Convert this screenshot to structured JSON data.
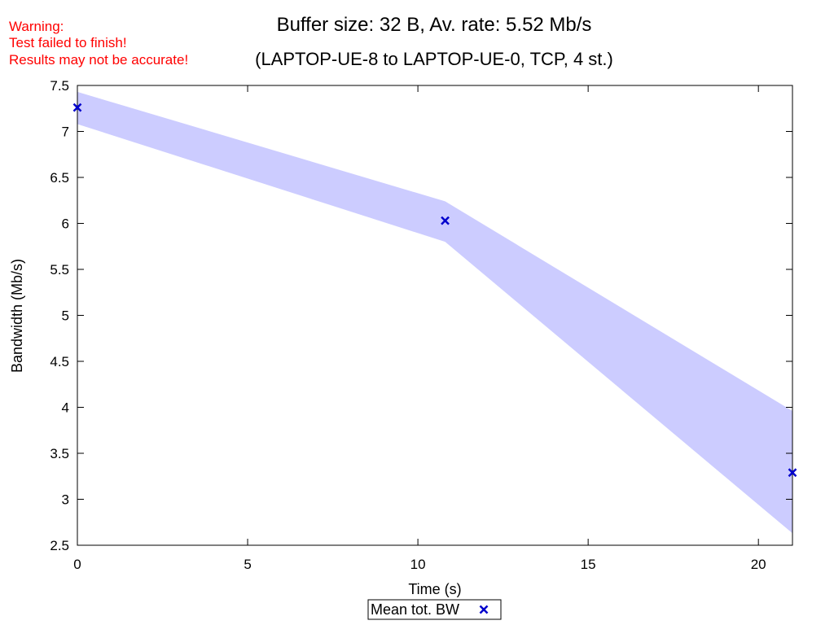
{
  "warning": {
    "line1": "Warning:",
    "line2": "Test failed to finish!",
    "line3": "Results may not be accurate!",
    "color": "#ff0000"
  },
  "chart_data": {
    "type": "line",
    "title": "Buffer size: 32 B, Av. rate: 5.52 Mb/s",
    "subtitle": "(LAPTOP-UE-8 to LAPTOP-UE-0, TCP, 4 st.)",
    "xlabel": "Time (s)",
    "ylabel": "Bandwidth (Mb/s)",
    "xlim": [
      0,
      21
    ],
    "ylim": [
      2.5,
      7.5
    ],
    "xticks": [
      "0",
      "5",
      "10",
      "15",
      "20"
    ],
    "yticks": [
      "2.5",
      "3",
      "3.5",
      "4",
      "4.5",
      "5",
      "5.5",
      "6",
      "6.5",
      "7",
      "7.5"
    ],
    "grid": false,
    "legend_position": "bottom-center",
    "band": {
      "x": [
        0,
        10.8,
        21
      ],
      "lower": [
        7.08,
        5.8,
        2.63
      ],
      "upper": [
        7.43,
        6.24,
        3.96
      ],
      "color": "#ccccff"
    },
    "series": [
      {
        "name": "Mean tot. BW",
        "marker": "x",
        "color": "#0000cc",
        "x": [
          0,
          10.8,
          21
        ],
        "y": [
          7.26,
          6.03,
          3.29
        ]
      }
    ]
  }
}
